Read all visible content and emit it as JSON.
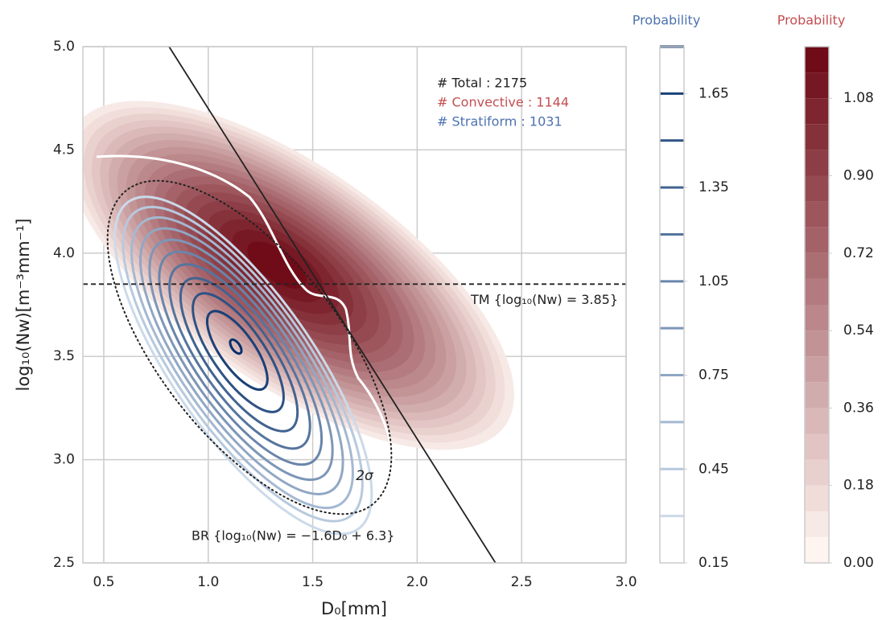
{
  "chart_data": {
    "type": "kde",
    "xlabel": "D₀[mm]",
    "ylabel": "log₁₀(Nw)[m⁻³mm⁻¹]",
    "xlim": [
      0.4,
      3.0
    ],
    "xticks": [
      0.5,
      {
        "value": 1,
        "label": "1.0"
      },
      1.5,
      {
        "value": 2,
        "label": "2.0"
      },
      2.5,
      {
        "value": 3,
        "label": "3.0"
      }
    ],
    "ylim": [
      2.5,
      5.0
    ],
    "yticks": [
      2.5,
      {
        "value": 3,
        "label": "3.0"
      },
      3.5,
      {
        "value": 4,
        "label": "4.0"
      },
      4.5,
      {
        "value": 5,
        "label": "5.0"
      }
    ],
    "grid": true,
    "annotations": [
      {
        "text": "# Total : 2175",
        "color": "#222222"
      },
      {
        "text": "# Convective : 1144",
        "color": "#c44e52"
      },
      {
        "text": "# Stratiform : 1031",
        "color": "#4c72b0"
      }
    ],
    "tm_line": {
      "y": 3.85,
      "label": "TM {log₁₀(Nw) = 3.85}"
    },
    "br_line": {
      "slope": -1.6,
      "intercept": 6.3,
      "label": "BR {log₁₀(Nw) = −1.6D₀ + 6.3}"
    },
    "sigma_label": "2σ",
    "colorbars": [
      {
        "title": "Probability",
        "title_color": "#4c72b0",
        "style": "lines",
        "lim": [
          0.15,
          1.8
        ],
        "ticks": [
          0.15,
          0.45,
          0.75,
          1.05,
          1.35,
          1.65
        ],
        "levels": [
          0.3,
          0.45,
          0.6,
          0.75,
          0.9,
          1.05,
          1.2,
          1.35,
          1.5,
          1.65,
          1.8
        ],
        "colors": [
          "#deebf7",
          "#08306b"
        ]
      },
      {
        "title": "Probability",
        "title_color": "#c44e52",
        "style": "filled",
        "lim": [
          0,
          1.2
        ],
        "ticks": [
          {
            "value": 0,
            "label": "0.00"
          },
          0.18,
          0.36,
          0.54,
          0.72,
          {
            "value": 0.9,
            "label": "0.90"
          },
          1.08
        ],
        "levels": [
          0,
          0.06,
          0.12,
          0.18,
          0.24,
          0.3,
          0.36,
          0.42,
          0.48,
          0.54,
          0.6,
          0.66,
          0.72,
          0.78,
          0.84,
          0.9,
          0.96,
          1.02,
          1.08,
          1.14,
          1.2
        ],
        "colors": [
          "#fff5f0",
          "#67000d"
        ]
      }
    ]
  }
}
